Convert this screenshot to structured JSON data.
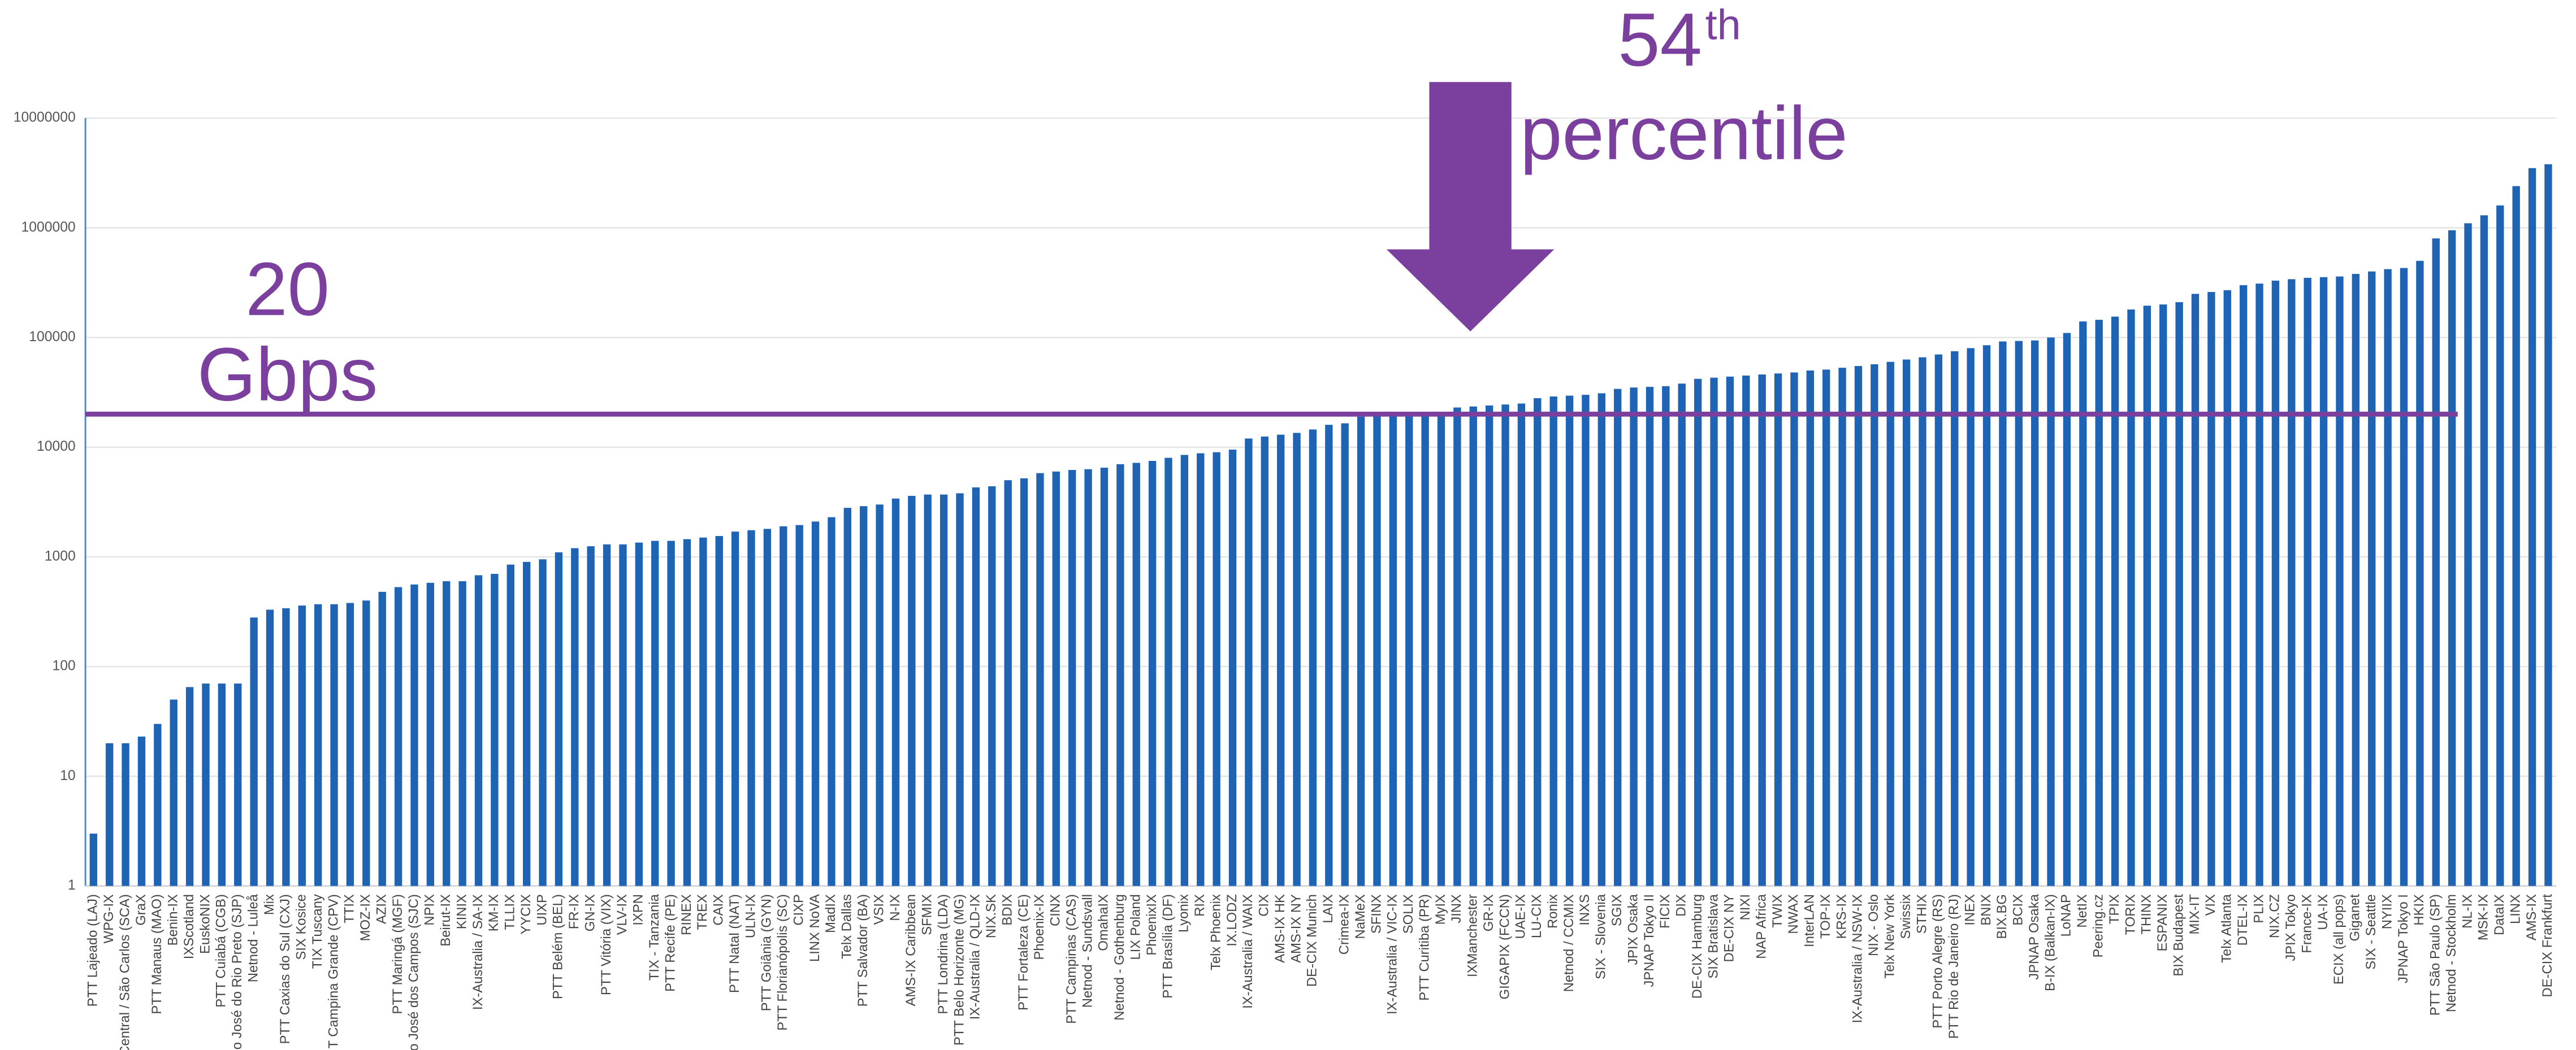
{
  "chart_data": {
    "type": "bar",
    "log_scale": true,
    "grid": true,
    "color": "#1f63b5",
    "ylim": [
      1,
      10000000
    ],
    "yticks": [
      1,
      10,
      100,
      1000,
      10000,
      100000,
      1000000,
      10000000
    ],
    "threshold": {
      "value": 20000,
      "color": "#7b3f9e",
      "label": [
        "20",
        "Gbps"
      ]
    },
    "percentile_annotation": {
      "number": "54",
      "suffix": "th",
      "word": "percentile",
      "color": "#7b3f9e"
    },
    "categories": [
      "PTT Lajeado (LAJ)",
      "WPG-IX",
      "Central / São Carlos (SCA)",
      "GraX",
      "PTT Manaus (MAO)",
      "Benin-IX",
      "IXScotland",
      "EuskoNIX",
      "PTT Cuiabá (CGB)",
      "o José do Rio Preto (SJP)",
      "Netnod - Luleå",
      "Mix",
      "PTT Caxias do Sul (CXJ)",
      "SIX Kosice",
      "TIX Tuscany",
      "T Campina Grande (CPV)",
      "TTIX",
      "MOZ-IX",
      "AZIX",
      "PTT Maringá (MGF)",
      "o José dos Campos (SJC)",
      "NPIX",
      "Beirut-IX",
      "KINIX",
      "IX-Australia / SA-IX",
      "KM-IX",
      "TLLIX",
      "YYCIX",
      "UIXP",
      "PTT Belém (BEL)",
      "FR-IX",
      "GN-IX",
      "PTT Vitória (VIX)",
      "VLV-IX",
      "IXPN",
      "TIX - Tanzania",
      "PTT Recife (PE)",
      "RINEX",
      "TREX",
      "CAIX",
      "PTT Natal (NAT)",
      "ULN-IX",
      "PTT Goiânia (GYN)",
      "PTT Florianópolis (SC)",
      "CIXP",
      "LINX NoVA",
      "MadIX",
      "Telx Dallas",
      "PTT Salvador (BA)",
      "VSIX",
      "N-IX",
      "AMS-IX Caribbean",
      "SFMIX",
      "PTT Londrina (LDA)",
      "PTT Belo Horizonte (MG)",
      "IX-Australia / QLD-IX",
      "NIX.SK",
      "BDIX",
      "PTT Fortaleza (CE)",
      "Phoenix-IX",
      "CINX",
      "PTT Campinas (CAS)",
      "Netnod - Sundsvall",
      "OmahaIX",
      "Netnod - Gothenburg",
      "LIX Poland",
      "PhoenixIX",
      "PTT Brasília (DF)",
      "Lyonix",
      "RIX",
      "Telx Phoenix",
      "IX.LODZ",
      "IX-Australia / WAIX",
      "CIX",
      "AMS-IX HK",
      "AMS-IX NY",
      "DE-CIX Munich",
      "LAIX",
      "Crimea-IX",
      "NaMeX",
      "SFINX",
      "IX-Australia / VIC-IX",
      "SOLIX",
      "PTT Curitiba (PR)",
      "MyIX",
      "JINX",
      "IXManchester",
      "GR-IX",
      "GIGAPIX (FCCN)",
      "UAE-IX",
      "LU-CIX",
      "Ronix",
      "Netnod / CCMIX",
      "INXS",
      "SIX - Slovenia",
      "SGIX",
      "JPIX Osaka",
      "JPNAP Tokyo II",
      "FICIX",
      "DIX",
      "DE-CIX Hamburg",
      "SIX Bratislava",
      "DE-CIX NY",
      "NIXI",
      "NAP Africa",
      "TWIX",
      "NWAX",
      "InterLAN",
      "TOP-IX",
      "KRS-IX",
      "IX-Australia / NSW-IX",
      "NIX - Oslo",
      "Telx New York",
      "Swissix",
      "STHIX",
      "PTT Porto Alegre (RS)",
      "PTT Rio de Janeiro (RJ)",
      "INEX",
      "BNIX",
      "BIX.BG",
      "BCIX",
      "JPNAP Osaka",
      "B-IX (Balkan-IX)",
      "LoNAP",
      "NetIX",
      "Peering.cz",
      "TPIX",
      "TORIX",
      "THINX",
      "ESPANIX",
      "BIX Budapest",
      "MIX-IT",
      "VIX",
      "Telx Atlanta",
      "DTEL-IX",
      "PLIX",
      "NIX.CZ",
      "JPIX Tokyo",
      "France-IX",
      "UA-IX",
      "ECIX (all pops)",
      "Giganet",
      "SIX - Seattle",
      "NYIIX",
      "JPNAP Tokyo I",
      "HKIX",
      "PTT São Paulo (SP)",
      "Netnod - Stockholm",
      "NL-IX",
      "MSK-IX",
      "DataIX",
      "LINX",
      "AMS-IX",
      "DE-CIX Frankfurt"
    ],
    "values": [
      3,
      20,
      20,
      23,
      30,
      50,
      65,
      70,
      70,
      70,
      280,
      330,
      340,
      360,
      370,
      370,
      380,
      400,
      480,
      530,
      560,
      580,
      600,
      600,
      680,
      700,
      850,
      900,
      950,
      1100,
      1200,
      1250,
      1300,
      1300,
      1350,
      1400,
      1400,
      1450,
      1500,
      1550,
      1700,
      1750,
      1800,
      1900,
      1950,
      2100,
      2300,
      2800,
      2900,
      3000,
      3400,
      3600,
      3700,
      3700,
      3800,
      4300,
      4400,
      5000,
      5200,
      5800,
      6000,
      6200,
      6300,
      6500,
      7000,
      7200,
      7500,
      8000,
      8500,
      8800,
      9000,
      9500,
      12000,
      12500,
      13000,
      13500,
      14500,
      16000,
      16500,
      19000,
      19500,
      19500,
      20000,
      20500,
      21000,
      23000,
      23500,
      24000,
      24500,
      25000,
      28000,
      29000,
      29500,
      30000,
      31000,
      34000,
      35000,
      35500,
      36000,
      38000,
      42000,
      43000,
      44000,
      45000,
      46000,
      47000,
      48000,
      50000,
      51000,
      53000,
      55000,
      57000,
      60000,
      63000,
      66000,
      70000,
      75000,
      80000,
      85000,
      92000,
      93000,
      94000,
      100000,
      110000,
      140000,
      145000,
      155000,
      180000,
      195000,
      200000,
      210000,
      250000,
      260000,
      270000,
      300000,
      310000,
      330000,
      340000,
      350000,
      355000,
      360000,
      380000,
      400000,
      420000,
      430000,
      500000,
      800000,
      950000,
      1100000,
      1300000,
      1600000,
      2400000,
      3500000,
      3800000
    ]
  }
}
